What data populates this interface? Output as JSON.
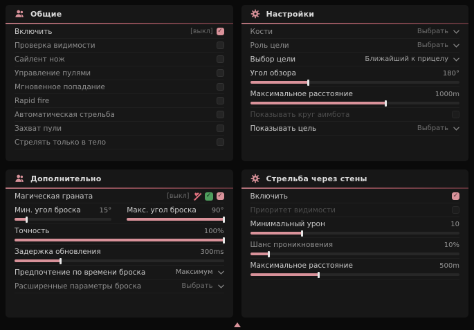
{
  "theme": {
    "accent": "#d9929a",
    "background": "#0a0a0a",
    "panel": "#171717",
    "green_badge": "#4f9d5d"
  },
  "panels": [
    {
      "id": "general",
      "title": "Общие",
      "icon": "users-icon",
      "rows": [
        {
          "type": "checkbox",
          "label": "Включить",
          "suffix": "[выкл]",
          "checked": true,
          "tone": "bright"
        },
        {
          "type": "checkbox",
          "label": "Проверка видимости",
          "checked": false,
          "tone": "normal"
        },
        {
          "type": "checkbox",
          "label": "Сайлент нож",
          "checked": false,
          "tone": "normal"
        },
        {
          "type": "checkbox",
          "label": "Управление пулями",
          "checked": false,
          "tone": "normal"
        },
        {
          "type": "checkbox",
          "label": "Мгновенное попадание",
          "checked": false,
          "tone": "normal"
        },
        {
          "type": "checkbox",
          "label": "Rapid fire",
          "checked": false,
          "tone": "normal"
        },
        {
          "type": "checkbox",
          "label": "Автоматическая стрельба",
          "checked": false,
          "tone": "normal"
        },
        {
          "type": "checkbox",
          "label": "Захват пули",
          "checked": false,
          "tone": "normal"
        },
        {
          "type": "checkbox",
          "label": "Стрелять только в тело",
          "checked": false,
          "tone": "normal"
        }
      ]
    },
    {
      "id": "settings",
      "title": "Настройки",
      "icon": "gear-icon",
      "rows": [
        {
          "type": "dropdown",
          "label": "Кости",
          "value": "Выбрать",
          "value_dim": true,
          "tone": "normal"
        },
        {
          "type": "dropdown",
          "label": "Роль цели",
          "value": "Выбрать",
          "value_dim": true,
          "tone": "normal"
        },
        {
          "type": "dropdown",
          "label": "Выбор цели",
          "value": "Ближайший к прицелу",
          "value_dim": false,
          "tone": "bright"
        },
        {
          "type": "slider",
          "label": "Угол обзора",
          "value": "180°",
          "fill": 28,
          "tone": "bright"
        },
        {
          "type": "slider",
          "label": "Максимальное расстояние",
          "value": "1000m",
          "fill": 65,
          "tone": "bright"
        },
        {
          "type": "checkbox",
          "label": "Показывать круг аимбота",
          "checked": false,
          "tone": "disabled"
        },
        {
          "type": "dropdown",
          "label": "Показывать цель",
          "value": "Выбрать",
          "value_dim": true,
          "tone": "bright"
        }
      ]
    },
    {
      "id": "additional",
      "title": "Дополнительно",
      "icon": "users-icon",
      "rows": [
        {
          "type": "checkbox",
          "label": "Магическая граната",
          "suffix": "[выкл]",
          "icons": [
            "heart-broken-icon",
            "check-circle-icon"
          ],
          "checked": true,
          "tone": "bright"
        },
        {
          "type": "slider-pair",
          "items": [
            {
              "label": "Мин. угол броска",
              "value": "15°",
              "fill": 13,
              "tone": "bright"
            },
            {
              "label": "Макс. угол броска",
              "value": "90°",
              "fill": 100,
              "tone": "bright"
            }
          ]
        },
        {
          "type": "slider",
          "label": "Точность",
          "value": "100%",
          "fill": 100,
          "tone": "bright"
        },
        {
          "type": "slider",
          "label": "Задержка обновления",
          "value": "300ms",
          "fill": 22,
          "tone": "bright"
        },
        {
          "type": "dropdown",
          "label": "Предпочтение по времени броска",
          "value": "Максимум",
          "value_dim": false,
          "tone": "bright"
        },
        {
          "type": "dropdown",
          "label": "Расширенные параметры броска",
          "value": "Выбрать",
          "value_dim": true,
          "tone": "normal"
        }
      ]
    },
    {
      "id": "wallbang",
      "title": "Стрельба через стены",
      "icon": "gear-icon",
      "rows": [
        {
          "type": "checkbox",
          "label": "Включить",
          "checked": true,
          "tone": "bright"
        },
        {
          "type": "checkbox",
          "label": "Приоритет видимости",
          "checked": false,
          "tone": "disabled"
        },
        {
          "type": "slider",
          "label": "Минимальный урон",
          "value": "10",
          "fill": 25,
          "tone": "bright"
        },
        {
          "type": "slider",
          "label": "Шанс проникновения",
          "value": "10%",
          "fill": 9,
          "tone": "normal"
        },
        {
          "type": "slider",
          "label": "Максимальное расстояние",
          "value": "500m",
          "fill": 33,
          "tone": "bright"
        }
      ]
    }
  ],
  "footer": {
    "scroll_indicator": "up-arrow"
  }
}
